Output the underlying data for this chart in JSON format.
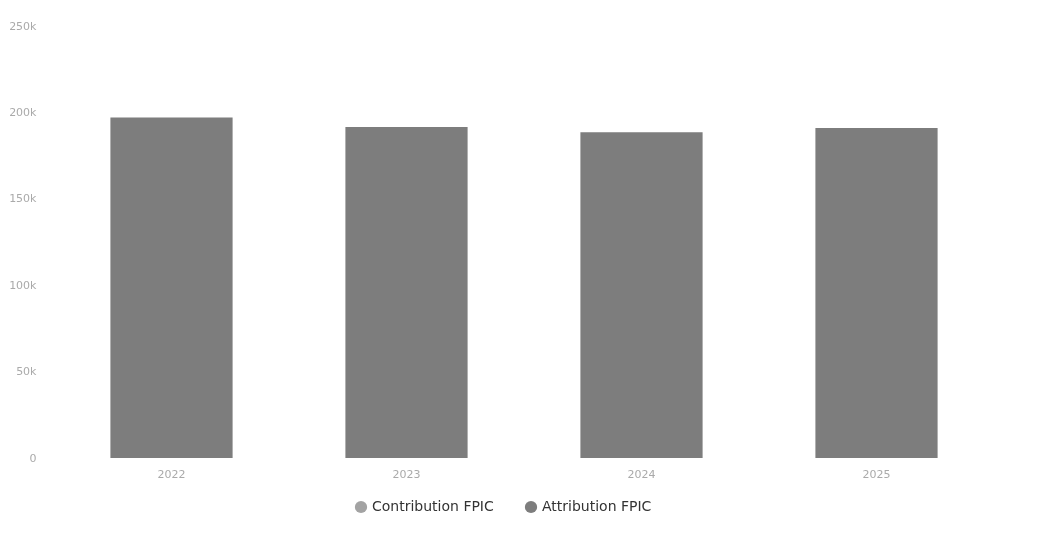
{
  "chart_data": {
    "type": "bar",
    "categories": [
      "2022",
      "2023",
      "2024",
      "2025"
    ],
    "series": [
      {
        "name": "Contribution FPIC",
        "color": "#a3a3a3",
        "values": [
          null,
          null,
          null,
          null
        ]
      },
      {
        "name": "Attribution FPIC",
        "color": "#7d7d7d",
        "values": [
          197000,
          191500,
          188500,
          191000
        ]
      }
    ],
    "ylim": [
      0,
      250000
    ],
    "yticks": [
      {
        "value": 0,
        "label": "0"
      },
      {
        "value": 50000,
        "label": "50k"
      },
      {
        "value": 100000,
        "label": "100k"
      },
      {
        "value": 150000,
        "label": "150k"
      },
      {
        "value": 200000,
        "label": "200k"
      },
      {
        "value": 250000,
        "label": "250k"
      }
    ],
    "grid": false,
    "legend": "bottom"
  }
}
